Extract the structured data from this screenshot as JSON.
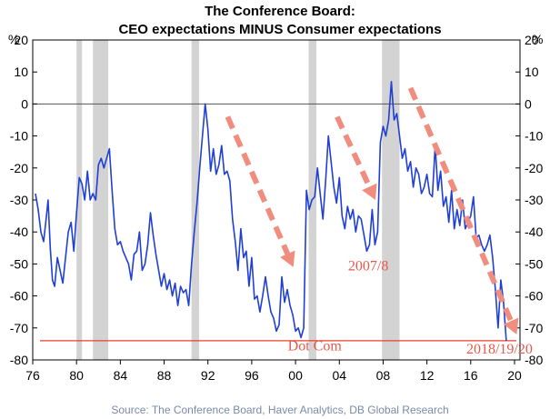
{
  "chart_data": {
    "type": "line",
    "title": "The Conference Board:",
    "subtitle": "CEO expectations MINUS Consumer expectations",
    "y_unit_left": "%",
    "y_unit_right": "%",
    "ylim": [
      -80,
      20
    ],
    "yticks": [
      20,
      10,
      0,
      -10,
      -20,
      -30,
      -40,
      -50,
      -60,
      -70,
      -80
    ],
    "xlim": [
      1976,
      2020.5
    ],
    "xtick_labels": [
      "76",
      "80",
      "84",
      "88",
      "92",
      "96",
      "00",
      "04",
      "08",
      "12",
      "16",
      "20"
    ],
    "xtick_years": [
      1976,
      1980,
      1984,
      1988,
      1992,
      1996,
      2000,
      2004,
      2008,
      2012,
      2016,
      2020
    ],
    "recessions": [
      [
        1980.0,
        1980.5
      ],
      [
        1981.5,
        1982.9
      ],
      [
        1990.5,
        1991.2
      ],
      [
        2001.2,
        2001.9
      ],
      [
        2007.9,
        2009.5
      ]
    ],
    "zero_line": 0,
    "reference_line": -74,
    "series": [
      {
        "color": "#1f3fd6",
        "points": [
          [
            1976.25,
            -28
          ],
          [
            1976.5,
            -33
          ],
          [
            1976.75,
            -40
          ],
          [
            1977.0,
            -43
          ],
          [
            1977.25,
            -35
          ],
          [
            1977.4,
            -30
          ],
          [
            1977.6,
            -45
          ],
          [
            1977.8,
            -55
          ],
          [
            1978.0,
            -57
          ],
          [
            1978.25,
            -48
          ],
          [
            1978.5,
            -52
          ],
          [
            1978.75,
            -56
          ],
          [
            1979.0,
            -48
          ],
          [
            1979.25,
            -40
          ],
          [
            1979.5,
            -37
          ],
          [
            1979.75,
            -46
          ],
          [
            1980.0,
            -34
          ],
          [
            1980.25,
            -23
          ],
          [
            1980.5,
            -25
          ],
          [
            1980.75,
            -30
          ],
          [
            1981.0,
            -21
          ],
          [
            1981.25,
            -30
          ],
          [
            1981.5,
            -28
          ],
          [
            1981.75,
            -30
          ],
          [
            1982.0,
            -19
          ],
          [
            1982.25,
            -17
          ],
          [
            1982.5,
            -20
          ],
          [
            1982.75,
            -17
          ],
          [
            1983.0,
            -14
          ],
          [
            1983.25,
            -27
          ],
          [
            1983.5,
            -39
          ],
          [
            1983.75,
            -44
          ],
          [
            1984.0,
            -43
          ],
          [
            1984.25,
            -46
          ],
          [
            1984.5,
            -48
          ],
          [
            1984.75,
            -50
          ],
          [
            1985.0,
            -55
          ],
          [
            1985.25,
            -47
          ],
          [
            1985.5,
            -46
          ],
          [
            1985.75,
            -40
          ],
          [
            1986.0,
            -52
          ],
          [
            1986.25,
            -50
          ],
          [
            1986.5,
            -44
          ],
          [
            1986.75,
            -34
          ],
          [
            1987.0,
            -41
          ],
          [
            1987.25,
            -47
          ],
          [
            1987.5,
            -52
          ],
          [
            1987.75,
            -57
          ],
          [
            1988.0,
            -53
          ],
          [
            1988.25,
            -58
          ],
          [
            1988.5,
            -55
          ],
          [
            1988.75,
            -60
          ],
          [
            1989.0,
            -56
          ],
          [
            1989.25,
            -63
          ],
          [
            1989.5,
            -57
          ],
          [
            1989.75,
            -59
          ],
          [
            1990.0,
            -58
          ],
          [
            1990.25,
            -63
          ],
          [
            1990.5,
            -50
          ],
          [
            1990.75,
            -40
          ],
          [
            1991.0,
            -31
          ],
          [
            1991.25,
            -20
          ],
          [
            1991.5,
            -10
          ],
          [
            1991.75,
            0
          ],
          [
            1992.0,
            -8
          ],
          [
            1992.25,
            -21
          ],
          [
            1992.5,
            -14
          ],
          [
            1992.75,
            -22
          ],
          [
            1993.0,
            -19
          ],
          [
            1993.25,
            -13
          ],
          [
            1993.5,
            -22
          ],
          [
            1993.75,
            -21
          ],
          [
            1994.0,
            -24
          ],
          [
            1994.25,
            -36
          ],
          [
            1994.5,
            -43
          ],
          [
            1994.75,
            -52
          ],
          [
            1995.0,
            -39
          ],
          [
            1995.25,
            -48
          ],
          [
            1995.5,
            -46
          ],
          [
            1995.75,
            -57
          ],
          [
            1996.0,
            -48
          ],
          [
            1996.25,
            -61
          ],
          [
            1996.5,
            -60
          ],
          [
            1996.75,
            -65
          ],
          [
            1997.0,
            -60
          ],
          [
            1997.25,
            -54
          ],
          [
            1997.5,
            -60
          ],
          [
            1997.75,
            -65
          ],
          [
            1998.0,
            -67
          ],
          [
            1998.25,
            -71
          ],
          [
            1998.5,
            -69
          ],
          [
            1998.75,
            -54
          ],
          [
            1999.0,
            -62
          ],
          [
            1999.25,
            -58
          ],
          [
            1999.5,
            -63
          ],
          [
            1999.75,
            -66
          ],
          [
            2000.0,
            -71
          ],
          [
            2000.25,
            -70
          ],
          [
            2000.5,
            -73
          ],
          [
            2000.75,
            -70
          ],
          [
            2001.0,
            -27
          ],
          [
            2001.25,
            -33
          ],
          [
            2001.5,
            -30
          ],
          [
            2001.75,
            -29
          ],
          [
            2002.0,
            -20
          ],
          [
            2002.25,
            -28
          ],
          [
            2002.5,
            -36
          ],
          [
            2002.75,
            -24
          ],
          [
            2003.0,
            -10
          ],
          [
            2003.25,
            -18
          ],
          [
            2003.5,
            -26
          ],
          [
            2003.75,
            -31
          ],
          [
            2004.0,
            -23
          ],
          [
            2004.25,
            -35
          ],
          [
            2004.5,
            -39
          ],
          [
            2004.75,
            -32
          ],
          [
            2005.0,
            -36
          ],
          [
            2005.25,
            -33
          ],
          [
            2005.5,
            -40
          ],
          [
            2005.75,
            -35
          ],
          [
            2006.0,
            -36
          ],
          [
            2006.25,
            -41
          ],
          [
            2006.5,
            -46
          ],
          [
            2006.75,
            -44
          ],
          [
            2007.0,
            -33
          ],
          [
            2007.25,
            -44
          ],
          [
            2007.5,
            -40
          ],
          [
            2007.75,
            -12
          ],
          [
            2008.0,
            -7
          ],
          [
            2008.25,
            -10
          ],
          [
            2008.5,
            -5
          ],
          [
            2008.75,
            7
          ],
          [
            2009.0,
            -5
          ],
          [
            2009.25,
            -3
          ],
          [
            2009.5,
            -10
          ],
          [
            2009.75,
            -17
          ],
          [
            2010.0,
            -14
          ],
          [
            2010.25,
            -21
          ],
          [
            2010.5,
            -18
          ],
          [
            2010.75,
            -26
          ],
          [
            2011.0,
            -20
          ],
          [
            2011.25,
            -22
          ],
          [
            2011.5,
            -28
          ],
          [
            2011.75,
            -26
          ],
          [
            2012.0,
            -22
          ],
          [
            2012.25,
            -28
          ],
          [
            2012.5,
            -29
          ],
          [
            2012.75,
            -13
          ],
          [
            2013.0,
            -27
          ],
          [
            2013.25,
            -21
          ],
          [
            2013.5,
            -32
          ],
          [
            2013.75,
            -29
          ],
          [
            2014.0,
            -37
          ],
          [
            2014.25,
            -27
          ],
          [
            2014.5,
            -39
          ],
          [
            2014.75,
            -33
          ],
          [
            2015.0,
            -38
          ],
          [
            2015.25,
            -30
          ],
          [
            2015.5,
            -39
          ],
          [
            2015.75,
            -37
          ],
          [
            2016.0,
            -35
          ],
          [
            2016.25,
            -29
          ],
          [
            2016.5,
            -42
          ],
          [
            2016.75,
            -41
          ],
          [
            2017.0,
            -44
          ],
          [
            2017.25,
            -46
          ],
          [
            2017.5,
            -44
          ],
          [
            2017.75,
            -41
          ],
          [
            2018.0,
            -48
          ],
          [
            2018.25,
            -58
          ],
          [
            2018.5,
            -70
          ],
          [
            2018.75,
            -55
          ],
          [
            2019.0,
            -62
          ],
          [
            2019.25,
            -74
          ]
        ]
      }
    ],
    "arrows": [
      {
        "from": [
          1993.8,
          -4
        ],
        "to": [
          1999.8,
          -51
        ]
      },
      {
        "from": [
          2003.8,
          -4
        ],
        "to": [
          2007.3,
          -30
        ]
      },
      {
        "from": [
          2010.5,
          5
        ],
        "to": [
          2020.2,
          -72
        ]
      }
    ],
    "annotations": [
      {
        "text": "2007/8",
        "x": 2004.8,
        "y": -52
      },
      {
        "text": "Dot Com",
        "x": 1999.3,
        "y": -77
      },
      {
        "text": "2018/19/20",
        "x": 2015.6,
        "y": -78
      }
    ]
  },
  "source": "Source: The Conference Board, Haver Analytics, DB Global Research"
}
